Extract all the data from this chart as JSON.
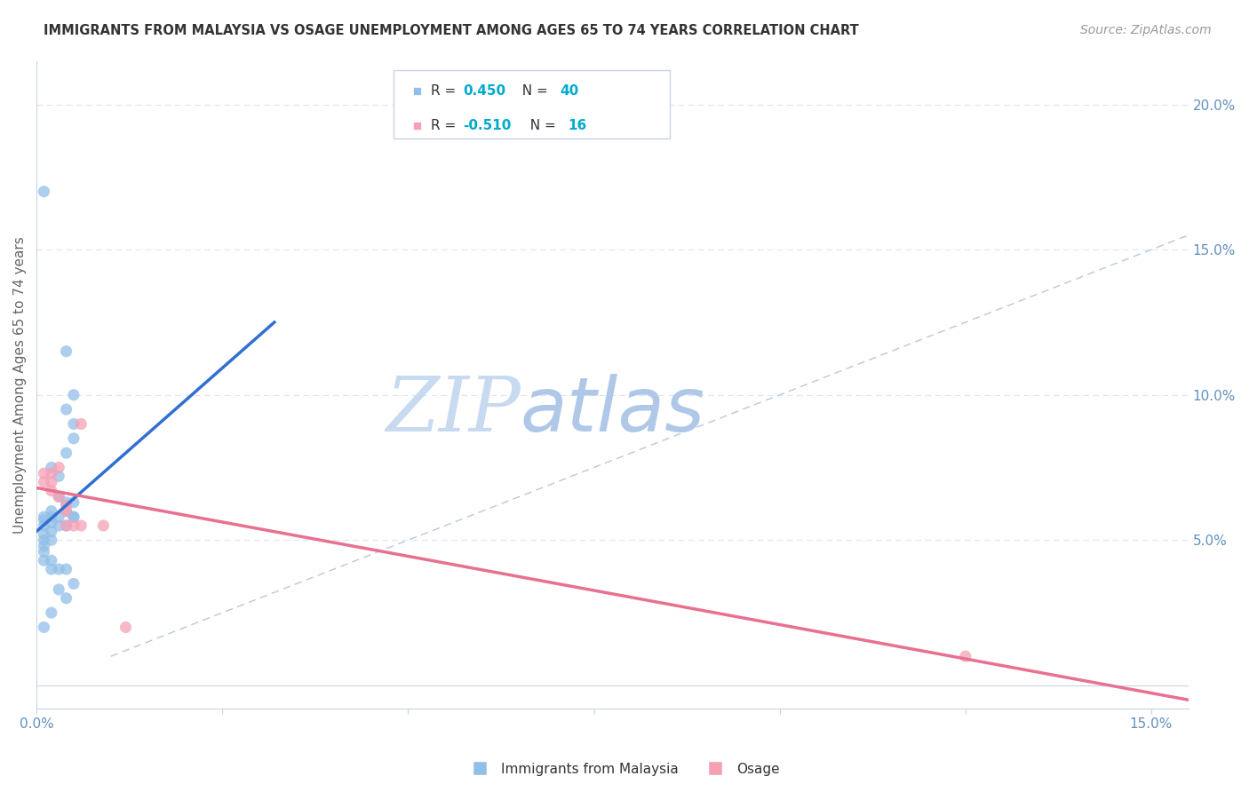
{
  "title": "IMMIGRANTS FROM MALAYSIA VS OSAGE UNEMPLOYMENT AMONG AGES 65 TO 74 YEARS CORRELATION CHART",
  "source": "Source: ZipAtlas.com",
  "ylabel": "Unemployment Among Ages 65 to 74 years",
  "xlim": [
    0.0,
    0.155
  ],
  "ylim": [
    -0.008,
    0.215
  ],
  "x_ticks": [
    0.0,
    0.025,
    0.05,
    0.075,
    0.1,
    0.125,
    0.15
  ],
  "x_tick_labels": [
    "0.0%",
    "",
    "",
    "",
    "",
    "",
    "15.0%"
  ],
  "y_ticks_right": [
    0.05,
    0.1,
    0.15,
    0.2
  ],
  "y_tick_labels_right": [
    "5.0%",
    "10.0%",
    "15.0%",
    "20.0%"
  ],
  "blue_scatter": [
    [
      0.001,
      0.17
    ],
    [
      0.004,
      0.115
    ],
    [
      0.005,
      0.1
    ],
    [
      0.004,
      0.095
    ],
    [
      0.005,
      0.09
    ],
    [
      0.005,
      0.085
    ],
    [
      0.004,
      0.08
    ],
    [
      0.002,
      0.075
    ],
    [
      0.003,
      0.072
    ],
    [
      0.003,
      0.065
    ],
    [
      0.004,
      0.063
    ],
    [
      0.005,
      0.063
    ],
    [
      0.004,
      0.06
    ],
    [
      0.003,
      0.058
    ],
    [
      0.005,
      0.058
    ],
    [
      0.004,
      0.055
    ],
    [
      0.003,
      0.055
    ],
    [
      0.002,
      0.06
    ],
    [
      0.002,
      0.058
    ],
    [
      0.002,
      0.056
    ],
    [
      0.002,
      0.053
    ],
    [
      0.002,
      0.05
    ],
    [
      0.001,
      0.058
    ],
    [
      0.001,
      0.057
    ],
    [
      0.001,
      0.055
    ],
    [
      0.001,
      0.052
    ],
    [
      0.001,
      0.05
    ],
    [
      0.001,
      0.048
    ],
    [
      0.001,
      0.046
    ],
    [
      0.001,
      0.043
    ],
    [
      0.002,
      0.043
    ],
    [
      0.002,
      0.04
    ],
    [
      0.003,
      0.04
    ],
    [
      0.004,
      0.04
    ],
    [
      0.005,
      0.035
    ],
    [
      0.003,
      0.033
    ],
    [
      0.004,
      0.03
    ],
    [
      0.002,
      0.025
    ],
    [
      0.001,
      0.02
    ],
    [
      0.005,
      0.058
    ]
  ],
  "pink_scatter": [
    [
      0.001,
      0.073
    ],
    [
      0.001,
      0.07
    ],
    [
      0.002,
      0.073
    ],
    [
      0.002,
      0.07
    ],
    [
      0.002,
      0.067
    ],
    [
      0.003,
      0.075
    ],
    [
      0.003,
      0.065
    ],
    [
      0.004,
      0.062
    ],
    [
      0.004,
      0.06
    ],
    [
      0.004,
      0.055
    ],
    [
      0.005,
      0.055
    ],
    [
      0.006,
      0.09
    ],
    [
      0.006,
      0.055
    ],
    [
      0.009,
      0.055
    ],
    [
      0.012,
      0.02
    ],
    [
      0.125,
      0.01
    ]
  ],
  "blue_line_x": [
    0.0,
    0.032
  ],
  "blue_line_y": [
    0.053,
    0.125
  ],
  "pink_line_x": [
    0.0,
    0.155
  ],
  "pink_line_y": [
    0.068,
    -0.005
  ],
  "dash_line_x": [
    0.01,
    0.155
  ],
  "dash_line_y": [
    0.01,
    0.155
  ],
  "blue_color": "#92bfe8",
  "pink_color": "#f5a0b5",
  "blue_line_color": "#3070d0",
  "pink_line_color": "#e87090",
  "dash_color": "#b8c8dc",
  "watermark_zip": "ZIP",
  "watermark_atlas": "atlas",
  "background_color": "#ffffff",
  "grid_color": "#dde5f0",
  "axis_color": "#c8d4e4",
  "tick_color": "#6090c0",
  "legend_box_color": "#c8d4e4",
  "r_value_color": "#00aacc",
  "n_value_color": "#00aacc"
}
